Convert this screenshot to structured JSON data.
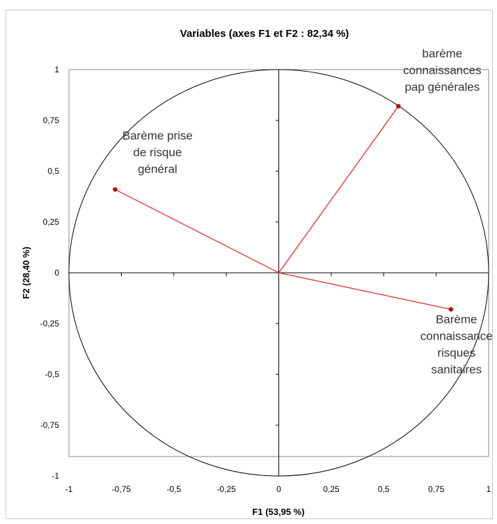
{
  "chart_data": {
    "type": "scatter",
    "title": "Variables (axes F1 et F2 : 82,34 %)",
    "xlabel": "F1 (53,95 %)",
    "ylabel": "F2 (28,40 %)",
    "xlim": [
      -1,
      1
    ],
    "ylim": [
      -1,
      1
    ],
    "x_ticks": [
      "-1",
      "-0,75",
      "-0,5",
      "-0,25",
      "0",
      "0,25",
      "0,5",
      "0,75",
      "1"
    ],
    "y_ticks": [
      "1",
      "0,75",
      "0,5",
      "0,25",
      "0",
      "-0,25",
      "-0,5",
      "-0,75",
      "-1"
    ],
    "x_tick_values": [
      -1,
      -0.75,
      -0.5,
      -0.25,
      0,
      0.25,
      0.5,
      0.75,
      1
    ],
    "y_tick_values": [
      1,
      0.75,
      0.5,
      0.25,
      0,
      -0.25,
      -0.5,
      -0.75,
      -1
    ],
    "correlation_circle": true,
    "grid": false,
    "colors": {
      "vector": "#e03030",
      "point": "#c00000",
      "circle": "#000000"
    },
    "points": [
      {
        "x": 0.57,
        "y": 0.82,
        "label_lines": [
          "barème",
          "connaissances",
          "pap générales"
        ]
      },
      {
        "x": -0.78,
        "y": 0.41,
        "label_lines": [
          "Barème prise",
          "de risque",
          "général"
        ]
      },
      {
        "x": 0.82,
        "y": -0.18,
        "label_lines": [
          "Barème",
          "connaissance",
          "risques",
          "sanitaires"
        ]
      }
    ]
  }
}
